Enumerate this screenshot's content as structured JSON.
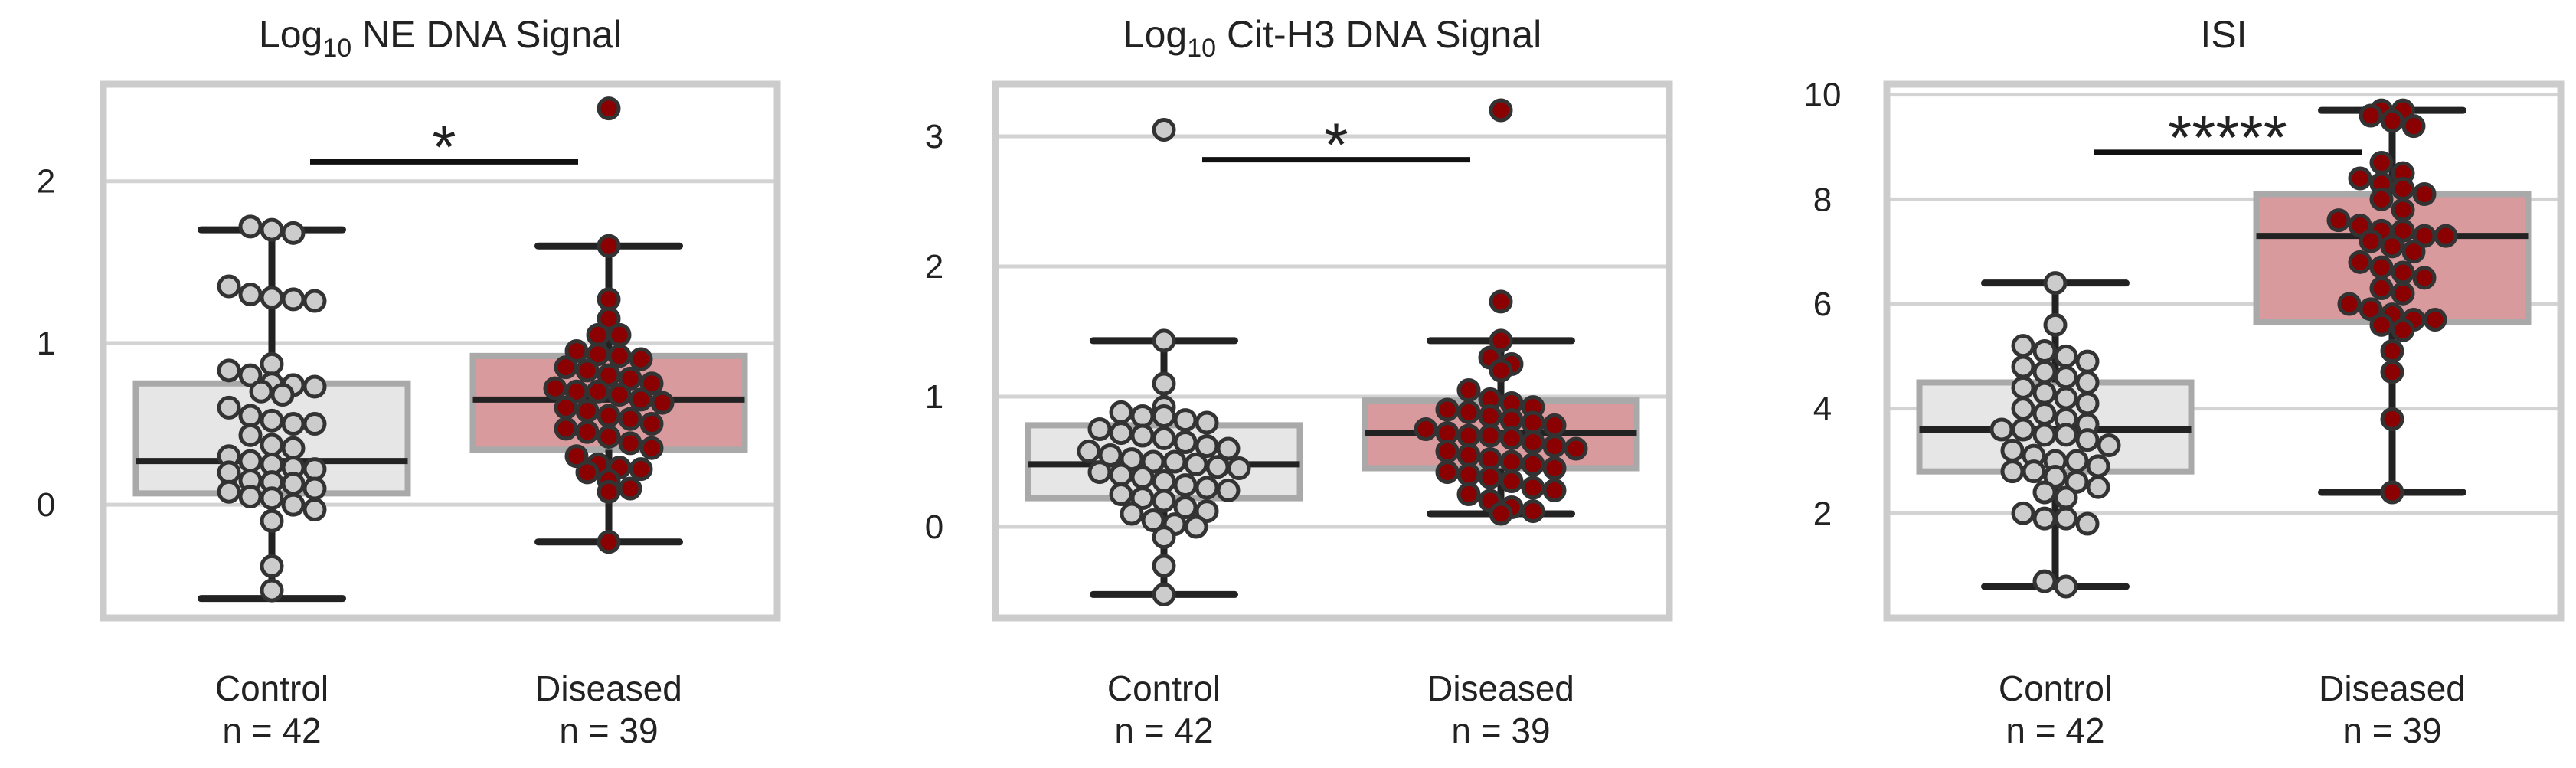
{
  "chart_data": [
    {
      "type": "box",
      "title": "NE DNA Signal",
      "title_prefix": "Log",
      "title_subscript": "10",
      "ylim": [
        -0.7,
        2.6
      ],
      "yticks": [
        0,
        1,
        2
      ],
      "grid": true,
      "categories": [
        {
          "name": "Control",
          "n_label": "n = 42",
          "fill": "#e6e6e6",
          "point_color": "#cccccc",
          "q1": 0.07,
          "median": 0.27,
          "q3": 0.75,
          "whisker_low": -0.58,
          "whisker_high": 1.7,
          "outliers": [],
          "values": [
            1.72,
            1.7,
            1.68,
            1.35,
            1.3,
            1.28,
            1.27,
            1.26,
            0.87,
            0.83,
            0.8,
            0.75,
            0.74,
            0.73,
            0.7,
            0.68,
            0.6,
            0.55,
            0.52,
            0.5,
            0.5,
            0.43,
            0.37,
            0.35,
            0.3,
            0.27,
            0.25,
            0.23,
            0.22,
            0.2,
            0.15,
            0.14,
            0.13,
            0.1,
            0.08,
            0.05,
            0.04,
            0.0,
            -0.03,
            -0.1,
            -0.38,
            -0.53
          ]
        },
        {
          "name": "Diseased",
          "n_label": "n = 39",
          "fill": "#d99a9e",
          "point_color": "#8b0000",
          "q1": 0.34,
          "median": 0.65,
          "q3": 0.92,
          "whisker_low": -0.23,
          "whisker_high": 1.6,
          "outliers": [
            2.45
          ],
          "values": [
            1.6,
            1.27,
            1.15,
            1.05,
            1.05,
            0.95,
            0.93,
            0.92,
            0.9,
            0.85,
            0.83,
            0.8,
            0.78,
            0.75,
            0.72,
            0.7,
            0.7,
            0.68,
            0.65,
            0.63,
            0.6,
            0.58,
            0.55,
            0.53,
            0.5,
            0.47,
            0.45,
            0.42,
            0.38,
            0.35,
            0.3,
            0.25,
            0.23,
            0.22,
            0.2,
            0.15,
            0.1,
            0.08,
            -0.23
          ]
        }
      ],
      "significance": {
        "label": "*",
        "between": [
          "Control",
          "Diseased"
        ],
        "y": 2.12
      }
    },
    {
      "type": "box",
      "title": "Cit-H3 DNA Signal",
      "title_prefix": "Log",
      "title_subscript": "10",
      "ylim": [
        -0.7,
        3.4
      ],
      "yticks": [
        0,
        1,
        2,
        3
      ],
      "grid": true,
      "categories": [
        {
          "name": "Control",
          "n_label": "n = 42",
          "fill": "#e6e6e6",
          "point_color": "#cccccc",
          "q1": 0.22,
          "median": 0.48,
          "q3": 0.78,
          "whisker_low": -0.52,
          "whisker_high": 1.43,
          "outliers": [
            3.05
          ],
          "values": [
            1.43,
            1.1,
            0.92,
            0.88,
            0.85,
            0.85,
            0.82,
            0.8,
            0.75,
            0.72,
            0.7,
            0.68,
            0.65,
            0.62,
            0.6,
            0.58,
            0.55,
            0.52,
            0.5,
            0.5,
            0.48,
            0.46,
            0.45,
            0.42,
            0.4,
            0.38,
            0.35,
            0.32,
            0.3,
            0.28,
            0.25,
            0.22,
            0.2,
            0.15,
            0.12,
            0.1,
            0.05,
            0.02,
            0.0,
            -0.08,
            -0.3,
            -0.52
          ]
        },
        {
          "name": "Diseased",
          "n_label": "n = 39",
          "fill": "#d99a9e",
          "point_color": "#8b0000",
          "q1": 0.45,
          "median": 0.72,
          "q3": 0.97,
          "whisker_low": 0.1,
          "whisker_high": 1.43,
          "outliers": [
            1.73,
            3.2
          ],
          "values": [
            1.43,
            1.3,
            1.25,
            1.2,
            1.05,
            0.98,
            0.95,
            0.92,
            0.9,
            0.88,
            0.85,
            0.82,
            0.8,
            0.78,
            0.75,
            0.72,
            0.7,
            0.7,
            0.68,
            0.65,
            0.62,
            0.6,
            0.58,
            0.55,
            0.52,
            0.5,
            0.48,
            0.45,
            0.42,
            0.4,
            0.38,
            0.35,
            0.3,
            0.28,
            0.25,
            0.2,
            0.15,
            0.12,
            0.1
          ]
        }
      ],
      "significance": {
        "label": "*",
        "between": [
          "Control",
          "Diseased"
        ],
        "y": 2.82
      }
    },
    {
      "type": "box",
      "title": "ISI",
      "title_prefix": "",
      "title_subscript": "",
      "ylim": [
        0.0,
        10.2
      ],
      "yticks": [
        2,
        4,
        6,
        8,
        10
      ],
      "grid": true,
      "categories": [
        {
          "name": "Control",
          "n_label": "n = 42",
          "fill": "#e6e6e6",
          "point_color": "#cccccc",
          "q1": 2.8,
          "median": 3.6,
          "q3": 4.5,
          "whisker_low": 0.6,
          "whisker_high": 6.4,
          "outliers": [],
          "values": [
            6.4,
            5.6,
            5.2,
            5.1,
            5.0,
            4.9,
            4.8,
            4.7,
            4.6,
            4.5,
            4.4,
            4.3,
            4.2,
            4.1,
            4.0,
            3.9,
            3.8,
            3.7,
            3.6,
            3.6,
            3.5,
            3.5,
            3.4,
            3.3,
            3.2,
            3.1,
            3.0,
            3.0,
            2.9,
            2.8,
            2.8,
            2.7,
            2.6,
            2.5,
            2.4,
            2.3,
            2.0,
            1.9,
            1.9,
            1.8,
            0.7,
            0.6
          ]
        },
        {
          "name": "Diseased",
          "n_label": "n = 39",
          "fill": "#d99a9e",
          "point_color": "#8b0000",
          "q1": 5.65,
          "median": 7.3,
          "q3": 8.1,
          "whisker_low": 2.4,
          "whisker_high": 9.7,
          "outliers": [],
          "values": [
            9.7,
            9.7,
            9.6,
            9.5,
            9.4,
            8.7,
            8.5,
            8.4,
            8.3,
            8.2,
            8.1,
            8.0,
            7.8,
            7.6,
            7.5,
            7.4,
            7.4,
            7.3,
            7.3,
            7.2,
            7.1,
            7.0,
            6.8,
            6.7,
            6.6,
            6.5,
            6.3,
            6.2,
            6.0,
            5.9,
            5.8,
            5.7,
            5.7,
            5.6,
            5.5,
            5.1,
            4.7,
            3.8,
            2.4
          ]
        }
      ],
      "significance": {
        "label": "*****",
        "between": [
          "Control",
          "Diseased"
        ],
        "y": 8.9
      }
    }
  ]
}
